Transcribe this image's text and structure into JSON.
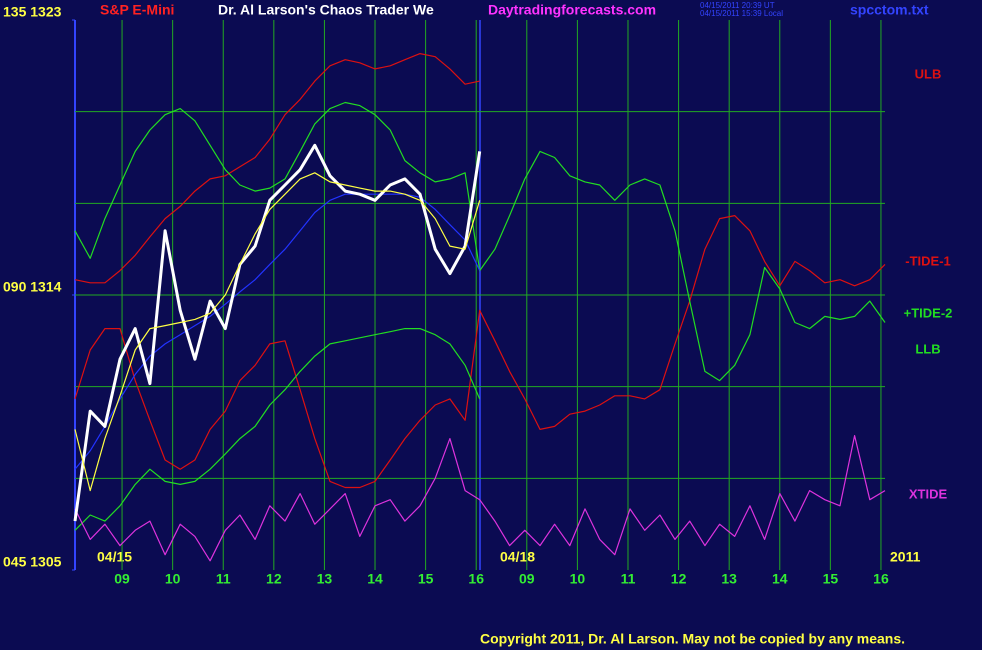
{
  "chart_data": {
    "type": "line",
    "symbol": "S&P E-Mini",
    "title": "Dr. Al Larson's Chaos Trader We",
    "website": "Daytradingforecasts.com",
    "timestamps": [
      "04/15/2011 20:39 UT",
      "04/15/2011 15:39 Local"
    ],
    "file": "spcctom.txt",
    "copyright": "Copyright 2011, Dr. Al Larson. May not be copied by any means.",
    "date_labels": [
      "04/15",
      "04/18",
      "2011"
    ],
    "xlim": [
      0.07,
      16.08
    ],
    "xticks": [
      {
        "value": 1,
        "label": "09"
      },
      {
        "value": 2,
        "label": "10"
      },
      {
        "value": 3,
        "label": "11"
      },
      {
        "value": 4,
        "label": "12"
      },
      {
        "value": 5,
        "label": "13"
      },
      {
        "value": 6,
        "label": "14"
      },
      {
        "value": 7,
        "label": "15"
      },
      {
        "value": 8,
        "label": "16"
      },
      {
        "value": 9,
        "label": "09"
      },
      {
        "value": 10,
        "label": "10"
      },
      {
        "value": 11,
        "label": "11"
      },
      {
        "value": 12,
        "label": "12"
      },
      {
        "value": 13,
        "label": "13"
      },
      {
        "value": 14,
        "label": "14"
      },
      {
        "value": 15,
        "label": "15"
      },
      {
        "value": 16,
        "label": "16"
      }
    ],
    "ylim": [
      1305,
      1323
    ],
    "yticks": [
      {
        "value": 1323,
        "label": "135 1323"
      },
      {
        "value": 1314,
        "label": "090 1314"
      },
      {
        "value": 1305,
        "label": "045 1305"
      }
    ],
    "ygrid": [
      1308,
      1311,
      1314,
      1317,
      1320
    ],
    "grid": true,
    "grid_color": "#22aa22",
    "x": [
      0.07,
      0.37,
      0.66,
      0.96,
      1.26,
      1.55,
      1.85,
      2.15,
      2.44,
      2.74,
      3.04,
      3.33,
      3.63,
      3.92,
      4.22,
      4.52,
      4.81,
      5.11,
      5.41,
      5.7,
      6.0,
      6.3,
      6.59,
      6.89,
      7.19,
      7.48,
      7.78,
      8.07,
      8.37,
      8.66,
      8.96,
      9.26,
      9.55,
      9.85,
      10.15,
      10.44,
      10.74,
      11.04,
      11.33,
      11.63,
      11.93,
      12.22,
      12.52,
      12.81,
      13.11,
      13.41,
      13.7,
      14.0,
      14.3,
      14.59,
      14.89,
      15.19,
      15.48,
      15.78,
      16.08
    ],
    "series": [
      {
        "name": "ULB",
        "color": "#dd1111",
        "values": [
          1314.5,
          1314.4,
          1314.4,
          1314.8,
          1315.3,
          1315.9,
          1316.5,
          1316.9,
          1317.4,
          1317.8,
          1317.9,
          1318.2,
          1318.5,
          1319.1,
          1319.9,
          1320.4,
          1321.0,
          1321.5,
          1321.7,
          1321.6,
          1321.4,
          1321.5,
          1321.7,
          1321.9,
          1321.8,
          1321.4,
          1320.9,
          1321.0,
          null,
          null,
          null,
          null,
          null,
          null,
          null,
          null,
          null,
          null,
          null,
          null,
          null,
          null,
          null,
          null,
          null,
          null,
          null,
          null,
          null,
          null,
          null,
          null,
          null,
          null,
          null
        ]
      },
      {
        "name": "-TIDE-1",
        "color": "#dd1111",
        "values": [
          1310.6,
          1312.2,
          1312.9,
          1312.9,
          1311.2,
          1309.9,
          1308.6,
          1308.3,
          1308.6,
          1309.6,
          1310.2,
          1311.2,
          1311.7,
          1312.4,
          1312.5,
          1310.9,
          1309.3,
          1307.9,
          1307.7,
          1307.7,
          1307.9,
          1308.6,
          1309.3,
          1309.9,
          1310.4,
          1310.6,
          1309.9,
          1313.5,
          1312.5,
          1311.5,
          1310.6,
          1309.6,
          1309.7,
          1310.1,
          1310.2,
          1310.4,
          1310.7,
          1310.7,
          1310.6,
          1310.9,
          1312.4,
          1313.8,
          1315.5,
          1316.5,
          1316.6,
          1316.1,
          1315.1,
          1314.3,
          1315.1,
          1314.8,
          1314.4,
          1314.5,
          1314.3,
          1314.5,
          1315.0
        ]
      },
      {
        "name": "+TIDE-2",
        "color": "#22dd22",
        "values": [
          1316.1,
          1315.2,
          1316.5,
          1317.6,
          1318.7,
          1319.4,
          1319.9,
          1320.1,
          1319.7,
          1318.9,
          1318.1,
          1317.6,
          1317.4,
          1317.5,
          1317.8,
          1318.7,
          1319.6,
          1320.1,
          1320.3,
          1320.2,
          1319.9,
          1319.4,
          1318.4,
          1318.0,
          1317.7,
          1317.8,
          1318.0,
          1314.8,
          1315.5,
          1316.6,
          1317.8,
          1318.7,
          1318.5,
          1317.9,
          1317.7,
          1317.6,
          1317.1,
          1317.6,
          1317.8,
          1317.6,
          1316.1,
          1313.8,
          1311.5,
          1311.2,
          1311.7,
          1312.7,
          1314.9,
          1314.2,
          1313.1,
          1312.9,
          1313.3,
          1313.2,
          1313.3,
          1313.8,
          1313.1
        ]
      },
      {
        "name": "LLB",
        "color": "#22dd22",
        "values": [
          1306.3,
          1306.8,
          1306.6,
          1307.1,
          1307.8,
          1308.3,
          1307.9,
          1307.8,
          1307.9,
          1308.3,
          1308.8,
          1309.3,
          1309.7,
          1310.4,
          1310.9,
          1311.5,
          1312.0,
          1312.4,
          1312.5,
          1312.6,
          1312.7,
          1312.8,
          1312.9,
          1312.9,
          1312.7,
          1312.4,
          1311.7,
          1310.6,
          null,
          null,
          null,
          null,
          null,
          null,
          null,
          null,
          null,
          null,
          null,
          null,
          null,
          null,
          null,
          null,
          null,
          null,
          null,
          null,
          null,
          null,
          null,
          null,
          null,
          null,
          null
        ]
      },
      {
        "name": "XTIDE",
        "color": "#dd33dd",
        "values": [
          1307.0,
          1306.0,
          1306.5,
          1305.8,
          1306.3,
          1306.6,
          1305.5,
          1306.5,
          1306.1,
          1305.3,
          1306.3,
          1306.8,
          1306.0,
          1307.1,
          1306.6,
          1307.5,
          1306.5,
          1307.0,
          1307.5,
          1306.1,
          1307.1,
          1307.3,
          1306.6,
          1307.1,
          1308.0,
          1309.3,
          1307.6,
          1307.3,
          1306.6,
          1305.8,
          1306.3,
          1305.8,
          1306.5,
          1305.8,
          1307.0,
          1306.0,
          1305.5,
          1307.0,
          1306.3,
          1306.8,
          1306.0,
          1306.6,
          1305.8,
          1306.5,
          1306.1,
          1307.1,
          1306.0,
          1307.5,
          1306.6,
          1307.6,
          1307.3,
          1307.1,
          1309.4,
          1307.3,
          1307.6
        ]
      },
      {
        "color": "#2233ff",
        "values": [
          1308.3,
          1308.9,
          1309.7,
          1310.6,
          1311.4,
          1312.0,
          1312.4,
          1312.7,
          1313.0,
          1313.3,
          1313.7,
          1314.1,
          1314.5,
          1315.0,
          1315.5,
          1316.1,
          1316.7,
          1317.1,
          1317.3,
          1317.3,
          1317.3,
          1317.3,
          1317.3,
          1317.2,
          1316.8,
          1316.3,
          1315.8,
          1314.8,
          null,
          null,
          null,
          null,
          null,
          null,
          null,
          null,
          null,
          null,
          null,
          null,
          null,
          null,
          null,
          null,
          null,
          null,
          null,
          null,
          null,
          null,
          null,
          null,
          null,
          null,
          null
        ]
      },
      {
        "color": "#ffffff",
        "values": [
          1306.6,
          1310.2,
          1309.7,
          1311.9,
          1312.9,
          1311.1,
          1316.1,
          1313.5,
          1311.9,
          1313.8,
          1312.9,
          1315.0,
          1315.6,
          1317.1,
          1317.6,
          1318.1,
          1318.9,
          1317.9,
          1317.4,
          1317.3,
          1317.1,
          1317.6,
          1317.8,
          1317.3,
          1315.5,
          1314.7,
          1315.6,
          1318.7,
          null,
          null,
          null,
          null,
          null,
          null,
          null,
          null,
          null,
          null,
          null,
          null,
          null,
          null,
          null,
          null,
          null,
          null,
          null,
          null,
          null,
          null,
          null,
          null,
          null,
          null,
          null
        ]
      },
      {
        "color": "#ffff44",
        "values": [
          1309.6,
          1307.6,
          1309.3,
          1310.7,
          1312.2,
          1312.9,
          1313.0,
          1313.1,
          1313.2,
          1313.4,
          1314.0,
          1315.0,
          1316.0,
          1316.8,
          1317.3,
          1317.8,
          1318.0,
          1317.7,
          1317.6,
          1317.5,
          1317.4,
          1317.4,
          1317.3,
          1317.1,
          1316.5,
          1315.6,
          1315.5,
          1317.1,
          null,
          null,
          null,
          null,
          null,
          null,
          null,
          null,
          null,
          null,
          null,
          null,
          null,
          null,
          null,
          null,
          null,
          null,
          null,
          null,
          null,
          null,
          null,
          null,
          null,
          null,
          null
        ]
      }
    ]
  }
}
